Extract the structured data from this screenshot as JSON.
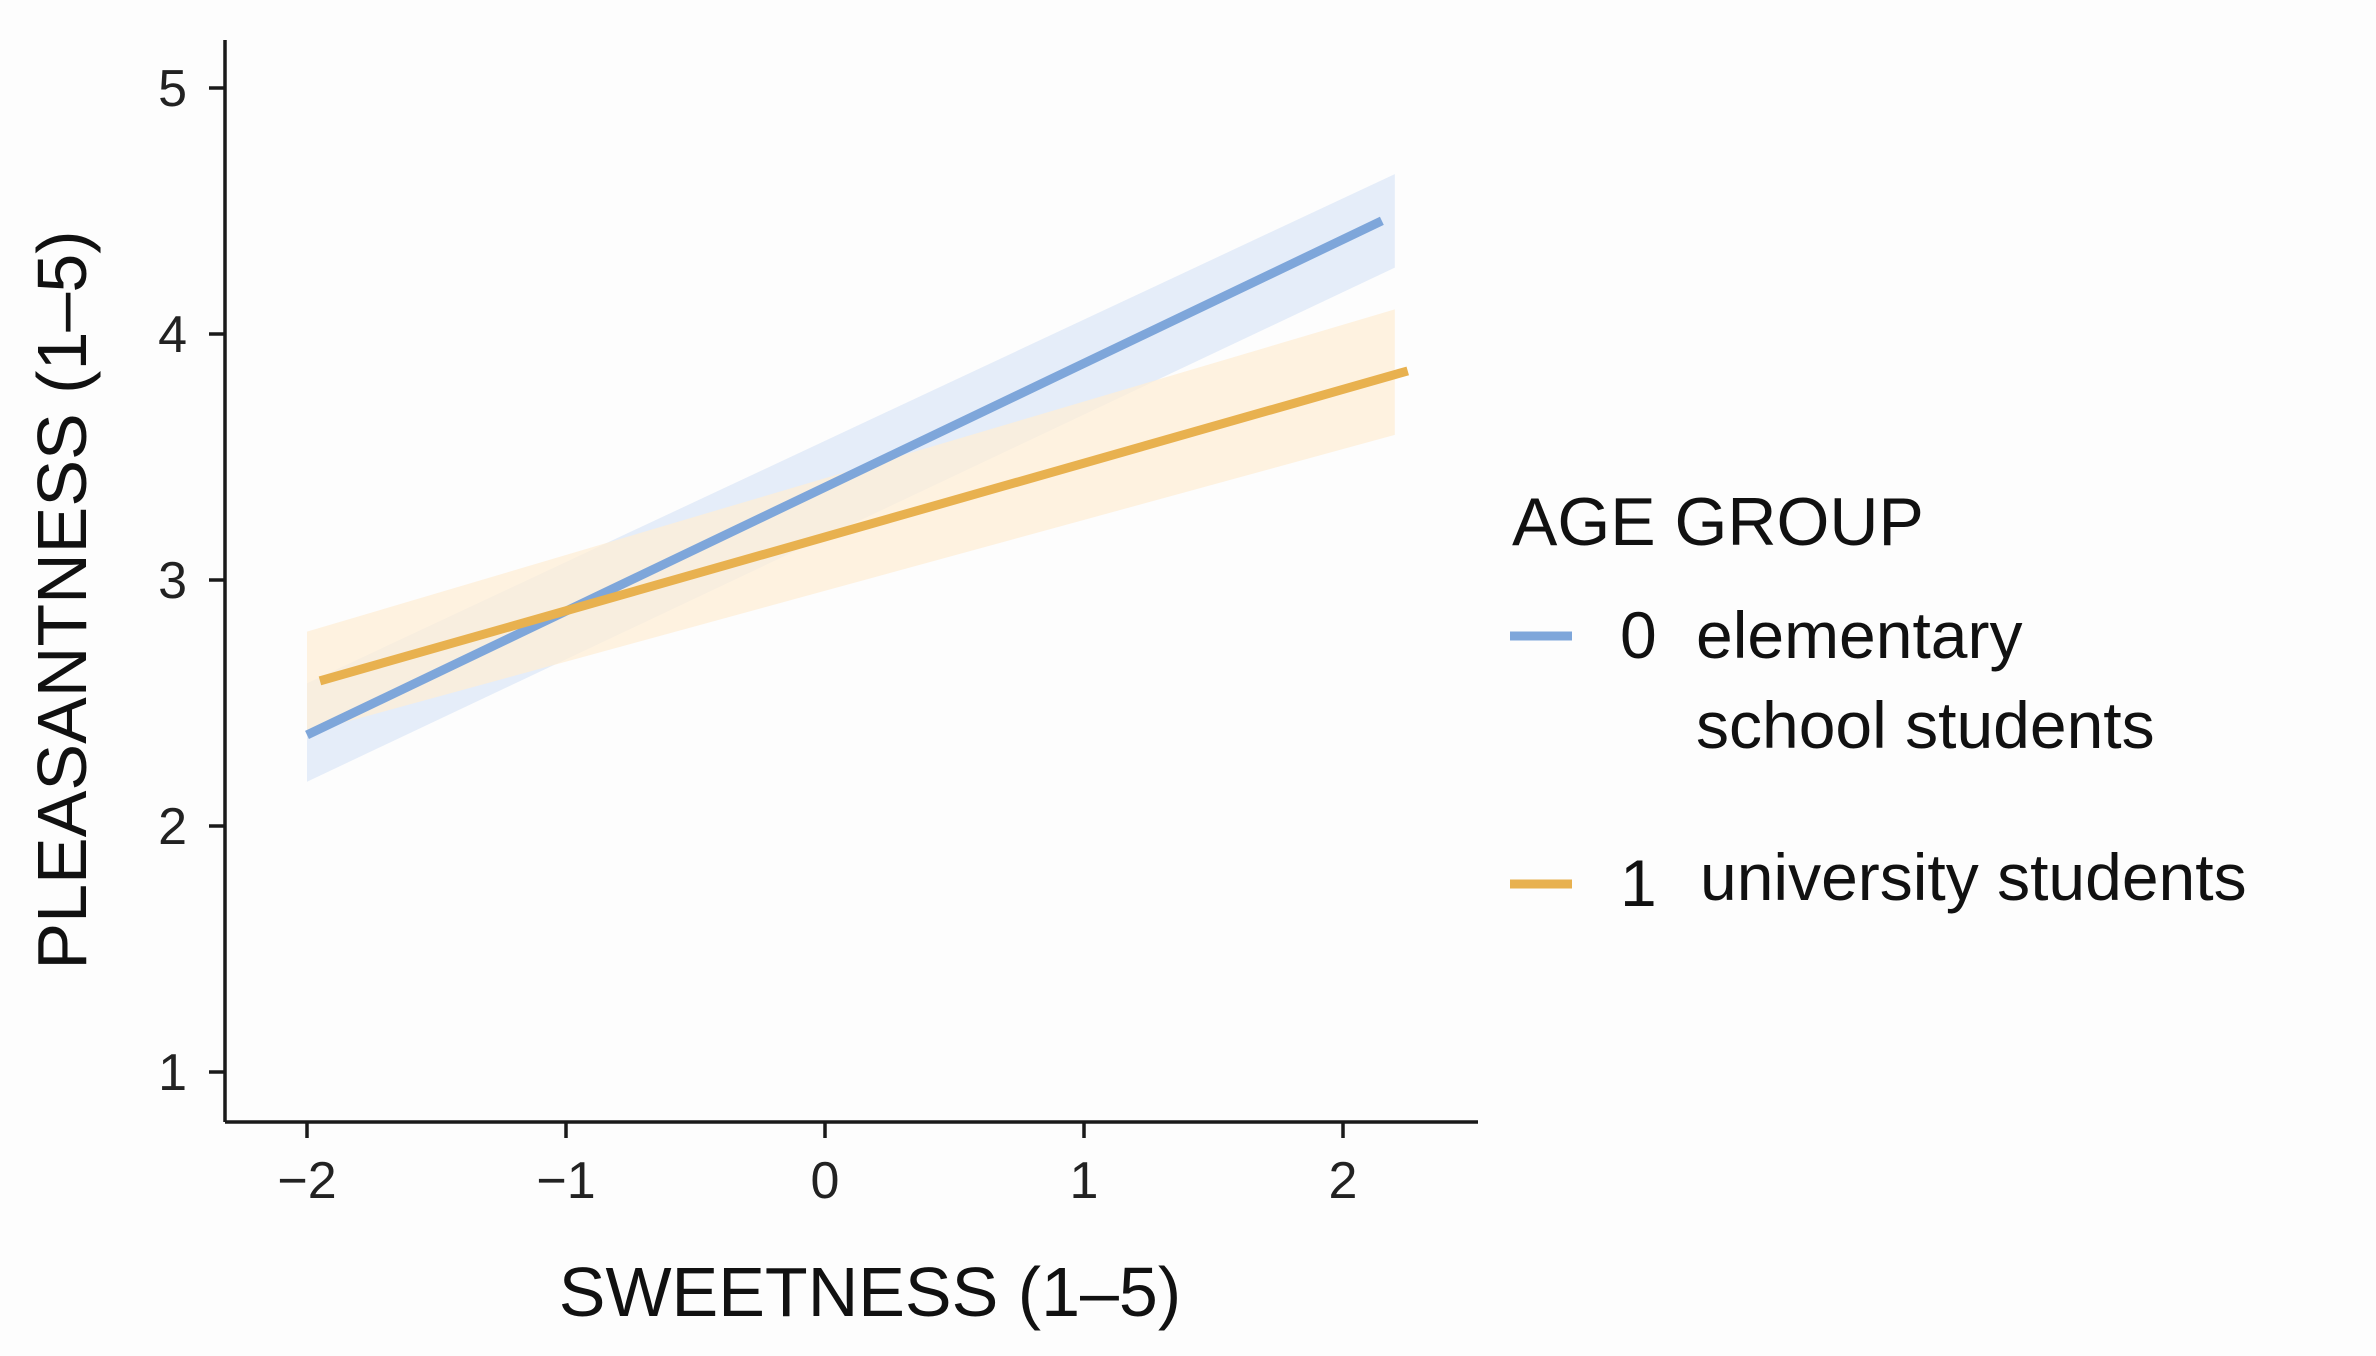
{
  "chart_data": {
    "type": "line",
    "title": "",
    "xlabel": "SWEETNESS (1–5)",
    "ylabel": "PLEASANTNESS (1–5)",
    "xlim": [
      -2.3,
      2.5
    ],
    "ylim": [
      0.8,
      5.2
    ],
    "xticks": [
      -2,
      -1,
      0,
      1,
      2
    ],
    "xtick_labels": [
      "−2",
      "−1",
      "0",
      "1",
      "2"
    ],
    "yticks": [
      1,
      2,
      3,
      4,
      5
    ],
    "ytick_labels": [
      "1",
      "2",
      "3",
      "4",
      "5"
    ],
    "grid": false,
    "legend": {
      "title": "AGE GROUP",
      "position": "right",
      "entries": [
        {
          "code": "0",
          "lines": [
            "elementary",
            "school students"
          ]
        },
        {
          "code": "1",
          "lines": [
            "university students"
          ]
        }
      ]
    },
    "series": [
      {
        "name": "0 elementary school students",
        "color": "#7ea6da",
        "band_color": "#dce7f7",
        "x": [
          -2.0,
          2.15
        ],
        "y": [
          2.37,
          4.46
        ],
        "ci_x": [
          -2.0,
          2.2
        ],
        "ci_lower": [
          2.18,
          4.27
        ],
        "ci_upper": [
          2.58,
          4.65
        ]
      },
      {
        "name": "1 university students",
        "color": "#e8b14f",
        "band_color": "#fdeed6",
        "x": [
          -1.95,
          2.25
        ],
        "y": [
          2.59,
          3.85
        ],
        "ci_x": [
          -2.0,
          2.2
        ],
        "ci_lower": [
          2.38,
          3.59
        ],
        "ci_upper": [
          2.79,
          4.1
        ]
      }
    ]
  }
}
